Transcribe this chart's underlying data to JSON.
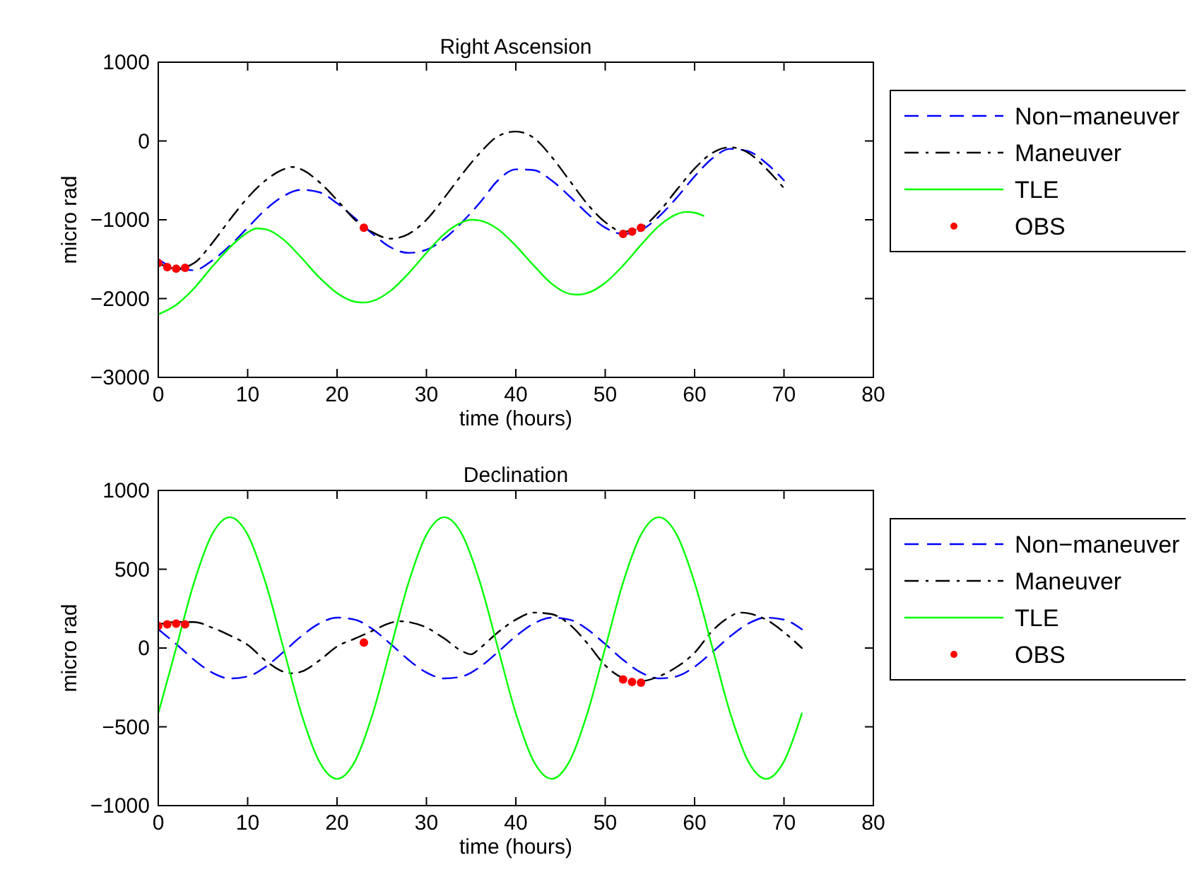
{
  "chart_data": [
    {
      "type": "line",
      "title": "Right Ascension",
      "xlabel": "time (hours)",
      "ylabel": "micro rad",
      "xlim": [
        0,
        80
      ],
      "xticks": [
        0,
        10,
        20,
        30,
        40,
        50,
        60,
        70,
        80
      ],
      "ylim": [
        -3000,
        1000
      ],
      "yticks": [
        -3000,
        -2000,
        -1000,
        0,
        1000
      ],
      "grid": false,
      "legend": "right",
      "series": [
        {
          "name": "Non−maneuver",
          "color": "#0000ff",
          "line_style": "dashed",
          "x": [
            0,
            2,
            4,
            6,
            8,
            10,
            12,
            14,
            16,
            18,
            20,
            22,
            24,
            26,
            28,
            30,
            32,
            34,
            36,
            38,
            40,
            42,
            44,
            46,
            48,
            50,
            52,
            54,
            56,
            58,
            60,
            62,
            64,
            66,
            68,
            70
          ],
          "values": [
            -1500,
            -1620,
            -1640,
            -1520,
            -1330,
            -1100,
            -870,
            -700,
            -620,
            -650,
            -790,
            -980,
            -1180,
            -1350,
            -1420,
            -1380,
            -1240,
            -1030,
            -780,
            -500,
            -360,
            -370,
            -500,
            -700,
            -920,
            -1100,
            -1180,
            -1130,
            -960,
            -720,
            -450,
            -220,
            -100,
            -130,
            -280,
            -500
          ]
        },
        {
          "name": "Maneuver",
          "color": "#000000",
          "line_style": "dashdot",
          "x": [
            0,
            2,
            4,
            6,
            8,
            10,
            12,
            14,
            15,
            16,
            18,
            20,
            22,
            24,
            26,
            28,
            30,
            32,
            34,
            36,
            38,
            40,
            42,
            44,
            46,
            48,
            50,
            52,
            54,
            56,
            58,
            60,
            62,
            64,
            66,
            68,
            70
          ],
          "values": [
            -1550,
            -1620,
            -1550,
            -1300,
            -1000,
            -720,
            -500,
            -360,
            -330,
            -360,
            -520,
            -750,
            -1000,
            -1160,
            -1240,
            -1180,
            -1000,
            -720,
            -420,
            -150,
            60,
            120,
            40,
            -200,
            -500,
            -800,
            -1030,
            -1150,
            -1100,
            -900,
            -620,
            -350,
            -150,
            -80,
            -150,
            -350,
            -600
          ]
        },
        {
          "name": "TLE",
          "color": "#00ff00",
          "line_style": "solid",
          "x": [
            0,
            2,
            4,
            6,
            8,
            10,
            11,
            12,
            14,
            16,
            18,
            20,
            22,
            23,
            24,
            26,
            28,
            30,
            32,
            34,
            35,
            36,
            38,
            40,
            42,
            44,
            46,
            47,
            48,
            50,
            52,
            54,
            56,
            58,
            59,
            60,
            61
          ],
          "values": [
            -2200,
            -2080,
            -1870,
            -1600,
            -1350,
            -1160,
            -1110,
            -1120,
            -1250,
            -1480,
            -1730,
            -1930,
            -2040,
            -2050,
            -2030,
            -1900,
            -1680,
            -1420,
            -1180,
            -1030,
            -1000,
            -1010,
            -1120,
            -1330,
            -1580,
            -1810,
            -1940,
            -1950,
            -1930,
            -1800,
            -1580,
            -1320,
            -1080,
            -930,
            -900,
            -910,
            -950
          ]
        },
        {
          "name": "OBS",
          "type": "scatter",
          "marker": "circle",
          "color": "#ff0000",
          "x": [
            0,
            1,
            2,
            3,
            23,
            52,
            53,
            54
          ],
          "values": [
            -1550,
            -1600,
            -1620,
            -1610,
            -1100,
            -1180,
            -1150,
            -1100
          ]
        }
      ]
    },
    {
      "type": "line",
      "title": "Declination",
      "xlabel": "time (hours)",
      "ylabel": "micro rad",
      "xlim": [
        0,
        80
      ],
      "xticks": [
        0,
        10,
        20,
        30,
        40,
        50,
        60,
        70,
        80
      ],
      "ylim": [
        -1000,
        1000
      ],
      "yticks": [
        -1000,
        -500,
        0,
        500,
        1000
      ],
      "grid": false,
      "legend": "right",
      "series": [
        {
          "name": "Non−maneuver",
          "color": "#0000ff",
          "line_style": "dashed",
          "x": [
            0,
            2,
            4,
            6,
            8,
            10,
            12,
            14,
            16,
            18,
            20,
            22,
            24,
            26,
            28,
            30,
            32,
            34,
            36,
            38,
            40,
            42,
            44,
            46,
            48,
            50,
            52,
            54,
            56,
            58,
            60,
            62,
            64,
            66,
            68,
            70,
            72
          ],
          "values": [
            119,
            25,
            -75,
            -155,
            -193,
            -180,
            -119,
            -25,
            75,
            155,
            193,
            180,
            119,
            25,
            -75,
            -155,
            -193,
            -180,
            -119,
            -25,
            75,
            155,
            193,
            180,
            119,
            25,
            -75,
            -155,
            -193,
            -180,
            -119,
            -25,
            75,
            155,
            193,
            180,
            119
          ]
        },
        {
          "name": "Maneuver",
          "color": "#000000",
          "line_style": "dashdot",
          "x": [
            0,
            2,
            4,
            6,
            8,
            10,
            12,
            14,
            15,
            16,
            18,
            20,
            22,
            24,
            26,
            27,
            28,
            30,
            32,
            34,
            35,
            36,
            38,
            40,
            42,
            44,
            46,
            48,
            50,
            52,
            54,
            56,
            58,
            60,
            62,
            64,
            65,
            66,
            68,
            70,
            72
          ],
          "values": [
            150,
            165,
            165,
            130,
            80,
            20,
            -80,
            -150,
            -160,
            -150,
            -80,
            10,
            60,
            110,
            160,
            170,
            165,
            130,
            60,
            -20,
            -40,
            0,
            100,
            180,
            225,
            215,
            150,
            30,
            -110,
            -190,
            -210,
            -180,
            -120,
            -30,
            110,
            200,
            225,
            220,
            180,
            100,
            0
          ]
        },
        {
          "name": "TLE",
          "color": "#00ff00",
          "line_style": "solid",
          "x": [
            0,
            2,
            4,
            6,
            8,
            10,
            12,
            14,
            16,
            18,
            20,
            22,
            24,
            26,
            28,
            30,
            32,
            34,
            36,
            38,
            40,
            42,
            44,
            46,
            48,
            50,
            52,
            54,
            56,
            58,
            60,
            62,
            64,
            66,
            68,
            70,
            72
          ],
          "values": [
            -415,
            0,
            415,
            719,
            830,
            719,
            415,
            0,
            -415,
            -719,
            -830,
            -719,
            -415,
            0,
            415,
            719,
            830,
            719,
            415,
            0,
            -415,
            -719,
            -830,
            -719,
            -415,
            0,
            415,
            719,
            830,
            719,
            415,
            0,
            -415,
            -719,
            -830,
            -719,
            -415
          ]
        },
        {
          "name": "OBS",
          "type": "scatter",
          "marker": "circle",
          "color": "#ff0000",
          "x": [
            0,
            1,
            2,
            3,
            23,
            52,
            53,
            54
          ],
          "values": [
            140,
            150,
            155,
            150,
            35,
            -200,
            -215,
            -220
          ]
        }
      ]
    }
  ]
}
